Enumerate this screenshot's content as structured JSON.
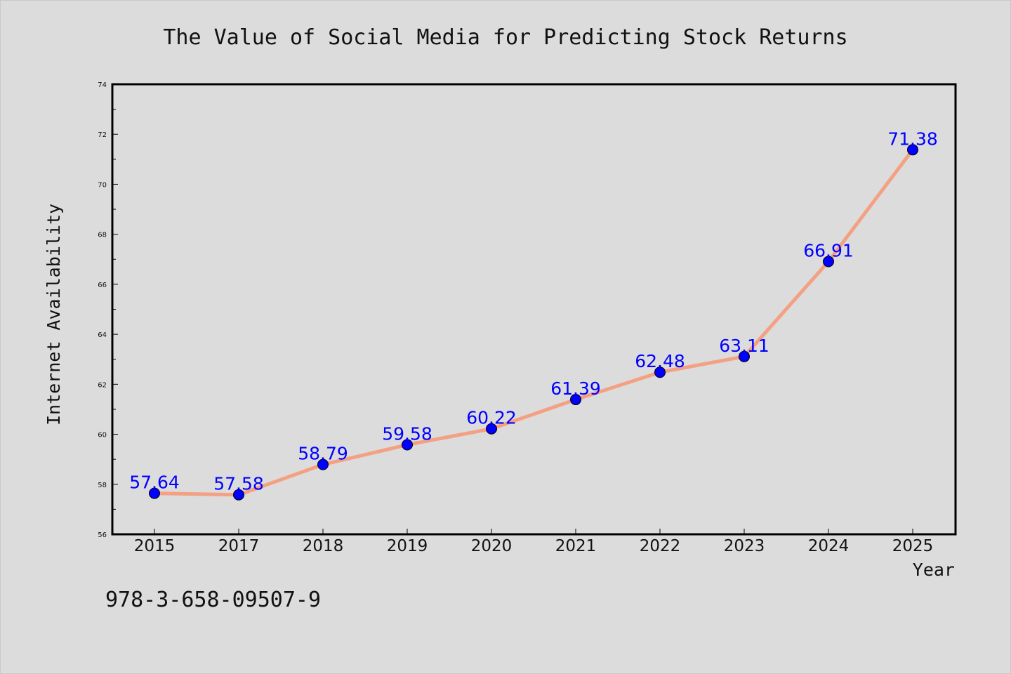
{
  "footer_text": "978-3-658-09507-9",
  "chart_data": {
    "type": "line",
    "title": "The Value of Social Media for Predicting Stock Returns",
    "xlabel": "Year",
    "ylabel": "Internet Availability",
    "categories": [
      "2015",
      "2017",
      "2018",
      "2019",
      "2020",
      "2021",
      "2022",
      "2023",
      "2024",
      "2025"
    ],
    "series": [
      {
        "values": [
          57.64,
          57.58,
          58.79,
          59.58,
          60.22,
          61.39,
          62.48,
          63.11,
          66.91,
          71.38
        ],
        "data_labels": [
          "57.64",
          "57.58",
          "58.79",
          "59.58",
          "60.22",
          "61.39",
          "62.48",
          "63.11",
          "66.91",
          "71.38"
        ]
      }
    ],
    "ylim": [
      56,
      74
    ],
    "yticks": [
      56,
      58,
      60,
      62,
      64,
      66,
      68,
      70,
      72,
      74
    ],
    "grid": false,
    "legend": "none",
    "colors": {
      "line": "#f4a083",
      "marker": "#0000ff",
      "data_label": "#0000ff",
      "background": "#dcdcdc"
    }
  }
}
